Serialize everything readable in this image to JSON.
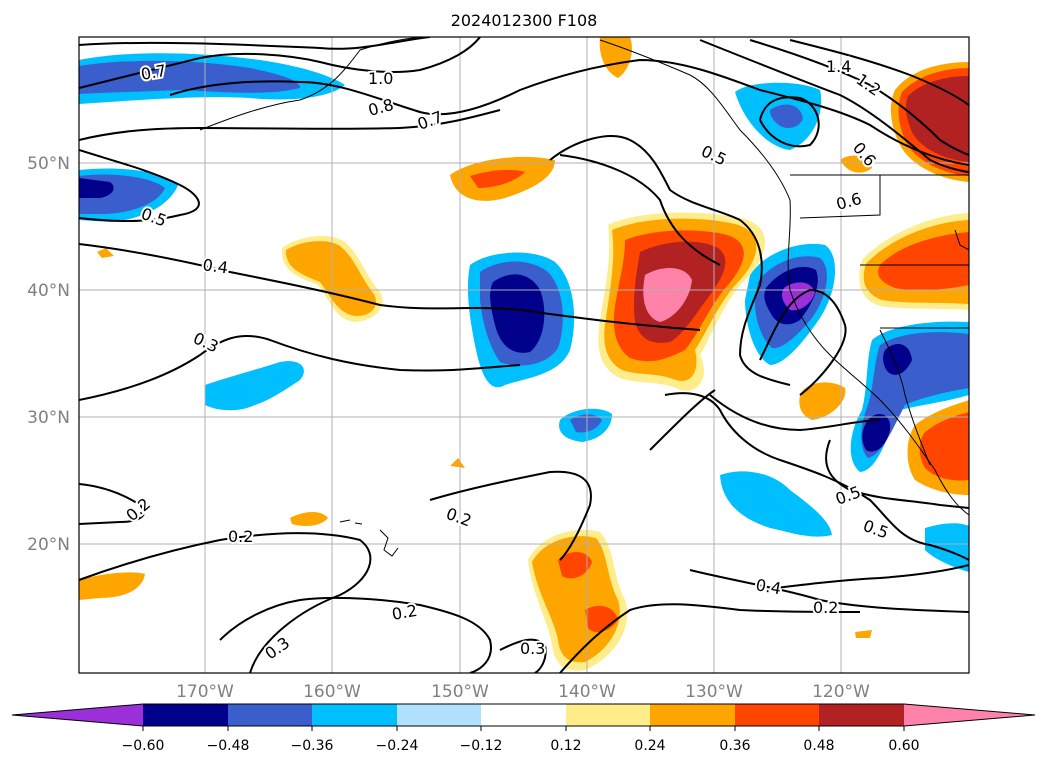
{
  "title": "2024012300 F108",
  "lat_labels": [
    "50°N",
    "40°N",
    "30°N",
    "20°N"
  ],
  "lon_labels": [
    "170°W",
    "160°W",
    "150°W",
    "140°W",
    "130°W",
    "120°W"
  ],
  "colorbar": {
    "ticks": [
      "−0.60",
      "−0.48",
      "−0.36",
      "−0.24",
      "−0.12",
      "0.12",
      "0.24",
      "0.36",
      "0.48",
      "0.60"
    ],
    "colors": [
      "#9b30d9",
      "#00008b",
      "#3a5fcd",
      "#00bfff",
      "#b0e2ff",
      "#ffffff",
      "#ffec8b",
      "#ffa500",
      "#ff4500",
      "#b22222",
      "#ff82ab"
    ]
  },
  "contour_labels": [
    "1.4",
    "1.2",
    "1.0",
    "0.8",
    "0.7",
    "0.6",
    "0.5",
    "0.4",
    "0.3",
    "0.2"
  ]
}
